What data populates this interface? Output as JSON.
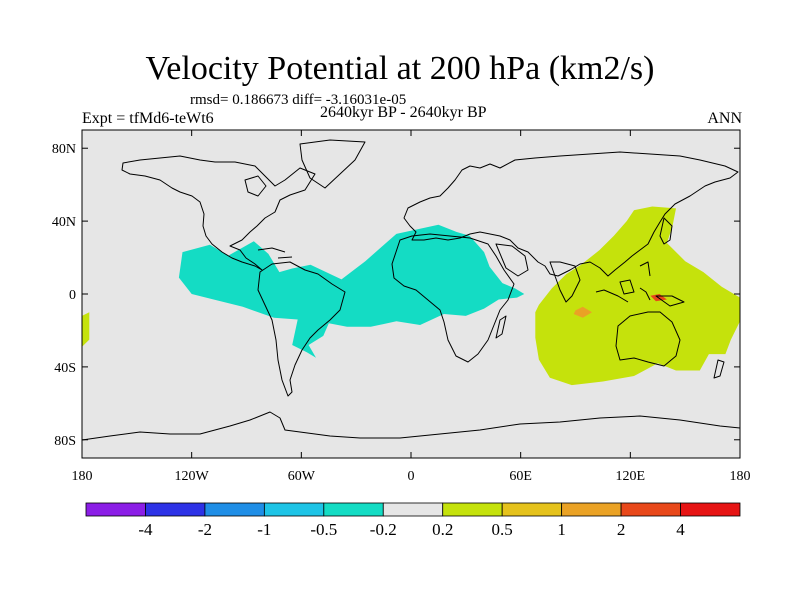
{
  "header": {
    "title": "Velocity Potential at 200 hPa (km2/s)",
    "stats": "rmsd= 0.186673 diff= -3.16031e-05",
    "experiment": "Expt = tfMd6-teWt6",
    "period": "2640kyr BP - 2640kyr BP",
    "season": "ANN"
  },
  "colors": {
    "ocean_land": "#e6e6e6",
    "negative_fill": "#14dcc4",
    "positive_fill": "#c5e20c",
    "positive_core": "#eaa225",
    "max_core": "#e8481a"
  },
  "chart_data": {
    "type": "contour-map",
    "title": "Velocity Potential at 200 hPa (km2/s)",
    "xlabel": "",
    "ylabel": "",
    "xlim": [
      -180,
      180
    ],
    "ylim": [
      -90,
      90
    ],
    "x_ticks": [
      {
        "value": -180,
        "label": "180"
      },
      {
        "value": -120,
        "label": "120W"
      },
      {
        "value": -60,
        "label": "60W"
      },
      {
        "value": 0,
        "label": "0"
      },
      {
        "value": 60,
        "label": "60E"
      },
      {
        "value": 120,
        "label": "120E"
      },
      {
        "value": 180,
        "label": "180"
      }
    ],
    "y_ticks": [
      {
        "value": 80,
        "label": "80N"
      },
      {
        "value": 40,
        "label": "40N"
      },
      {
        "value": 0,
        "label": "0"
      },
      {
        "value": -40,
        "label": "40S"
      },
      {
        "value": -80,
        "label": "80S"
      }
    ],
    "colorbar": {
      "colors": [
        "#8b1ee6",
        "#2d32e6",
        "#1f8ee6",
        "#1ec4e6",
        "#14dcc4",
        "#e6e6e6",
        "#c5e20c",
        "#e5c21c",
        "#eaa225",
        "#e8481a",
        "#e61414"
      ],
      "labels": [
        "-4",
        "-2",
        "-1",
        "-0.5",
        "-0.2",
        "0.2",
        "0.5",
        "1",
        "2",
        "4"
      ]
    },
    "regions": [
      {
        "level": "-0.5 to -0.2",
        "name": "tropical Americas and Atlantic low",
        "polygon": [
          [
            -125,
            23
          ],
          [
            -110,
            27
          ],
          [
            -100,
            21
          ],
          [
            -86,
            29
          ],
          [
            -78,
            22
          ],
          [
            -72,
            12
          ],
          [
            -65,
            14
          ],
          [
            -55,
            16
          ],
          [
            -38,
            8
          ],
          [
            -25,
            18
          ],
          [
            -8,
            33
          ],
          [
            15,
            38
          ],
          [
            25,
            34
          ],
          [
            32,
            32
          ],
          [
            40,
            23
          ],
          [
            43,
            15
          ],
          [
            50,
            6
          ],
          [
            57,
            3
          ],
          [
            62,
            0
          ],
          [
            58,
            -2
          ],
          [
            48,
            -3
          ],
          [
            40,
            -8
          ],
          [
            30,
            -12
          ],
          [
            18,
            -11
          ],
          [
            5,
            -17
          ],
          [
            -8,
            -15
          ],
          [
            -22,
            -18
          ],
          [
            -35,
            -18
          ],
          [
            -45,
            -16
          ],
          [
            -48,
            -23
          ],
          [
            -56,
            -28
          ],
          [
            -52,
            -35
          ],
          [
            -57,
            -32
          ],
          [
            -65,
            -28
          ],
          [
            -62,
            -14
          ],
          [
            -75,
            -13
          ],
          [
            -92,
            -7
          ],
          [
            -108,
            -3
          ],
          [
            -120,
            0
          ],
          [
            -127,
            9
          ]
        ]
      },
      {
        "level": "0.2 to 0.5",
        "name": "Indo-Pacific high",
        "polygon": [
          [
            68,
            -10
          ],
          [
            70,
            -6
          ],
          [
            77,
            3
          ],
          [
            85,
            11
          ],
          [
            93,
            16
          ],
          [
            103,
            24
          ],
          [
            111,
            32
          ],
          [
            118,
            40
          ],
          [
            122,
            46
          ],
          [
            132,
            48
          ],
          [
            145,
            47
          ],
          [
            143,
            37
          ],
          [
            140,
            28
          ],
          [
            150,
            18
          ],
          [
            160,
            12
          ],
          [
            170,
            4
          ],
          [
            180,
            -2
          ],
          [
            180,
            -15
          ],
          [
            175,
            -25
          ],
          [
            172,
            -33
          ],
          [
            163,
            -33
          ],
          [
            158,
            -42
          ],
          [
            145,
            -42
          ],
          [
            135,
            -38
          ],
          [
            122,
            -45
          ],
          [
            105,
            -48
          ],
          [
            88,
            -50
          ],
          [
            76,
            -46
          ],
          [
            70,
            -36
          ],
          [
            68,
            -24
          ]
        ]
      },
      {
        "level": "0.2 to 0.5",
        "name": "eastern Pacific edge",
        "polygon": [
          [
            -180,
            -12
          ],
          [
            -176,
            -10
          ],
          [
            -176,
            -25
          ],
          [
            -180,
            -29
          ]
        ]
      },
      {
        "level": "1 to 2",
        "name": "Indian Ocean core",
        "polygon": [
          [
            90,
            -9
          ],
          [
            94,
            -7
          ],
          [
            99,
            -10
          ],
          [
            94,
            -13
          ],
          [
            89,
            -11
          ]
        ]
      },
      {
        "level": "2 to 4",
        "name": "maritime continent core",
        "polygon": [
          [
            131,
            -1
          ],
          [
            136,
            0
          ],
          [
            140,
            -3
          ],
          [
            134,
            -4
          ]
        ]
      }
    ]
  }
}
